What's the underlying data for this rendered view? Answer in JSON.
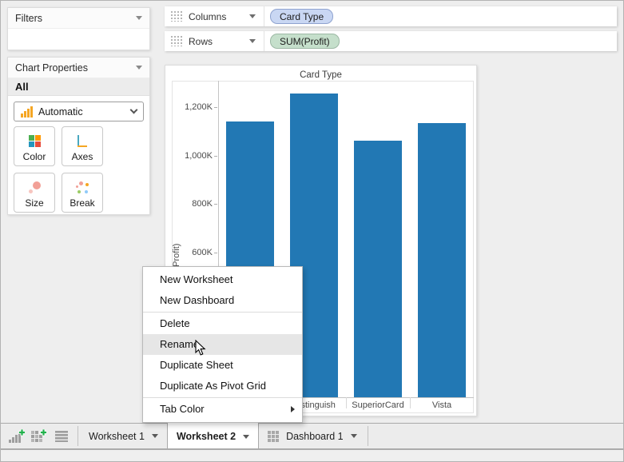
{
  "left_panel": {
    "filters_title": "Filters",
    "chart_properties_title": "Chart Properties",
    "scope_label": "All",
    "chart_type_selector": "Automatic",
    "property_buttons": [
      {
        "label": "Color"
      },
      {
        "label": "Axes"
      },
      {
        "label": "Size"
      },
      {
        "label": "Break"
      }
    ]
  },
  "shelves": {
    "columns": {
      "label": "Columns",
      "pill": "Card Type"
    },
    "rows": {
      "label": "Rows",
      "pill": "SUM(Profit)"
    }
  },
  "chart_data": {
    "type": "bar",
    "title": "Card Type",
    "ylabel": "SUM(Profit)",
    "categories": [
      "",
      "Distinguish",
      "SuperiorCard",
      "Vista"
    ],
    "values_k": [
      1140,
      1255,
      1060,
      1135
    ],
    "yticks": [
      {
        "label": "1,200K",
        "value": 1200
      },
      {
        "label": "1,000K",
        "value": 1000
      },
      {
        "label": "800K",
        "value": 800
      },
      {
        "label": "600K",
        "value": 600
      }
    ],
    "ylim_k": [
      0,
      1310
    ],
    "bar_color": "#2278b4",
    "grid": false,
    "legend": "none"
  },
  "context_menu": {
    "items": [
      {
        "label": "New Worksheet"
      },
      {
        "label": "New Dashboard"
      },
      {
        "label": "Delete",
        "separator_before": true
      },
      {
        "label": "Rename",
        "highlighted": true
      },
      {
        "label": "Duplicate Sheet"
      },
      {
        "label": "Duplicate As Pivot Grid"
      },
      {
        "label": "Tab Color",
        "separator_before": true,
        "has_submenu": true
      }
    ]
  },
  "tab_bar": {
    "tabs": [
      {
        "label": "Worksheet 1",
        "active": false
      },
      {
        "label": "Worksheet 2",
        "active": true
      },
      {
        "label": "Dashboard 1",
        "active": false
      }
    ]
  },
  "colors": {
    "accent_bar": "#2278b4",
    "pill_dimension_bg": "#c9d7f3",
    "pill_measure_bg": "#c5dfcb",
    "new_button_green": "#22b14c",
    "icon_orange": "#f5a623"
  }
}
